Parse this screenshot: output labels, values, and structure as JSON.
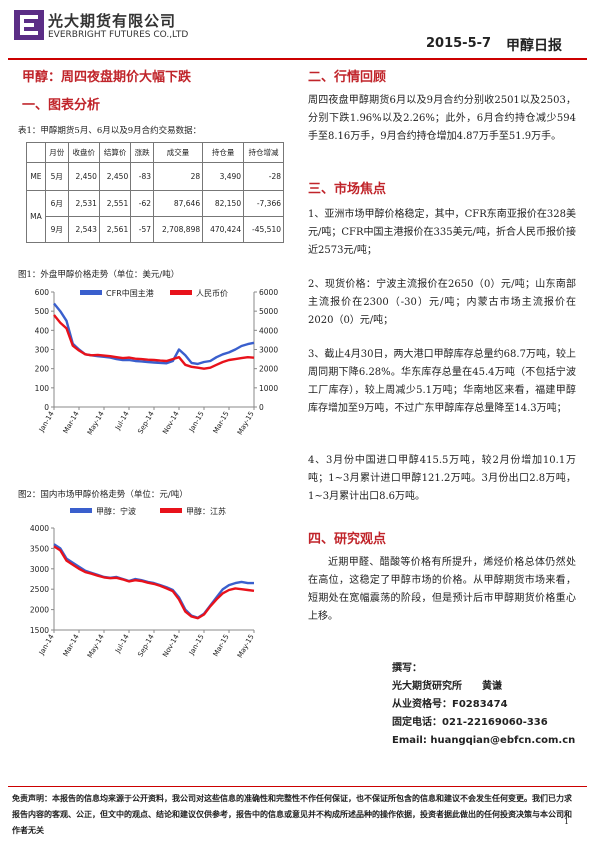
{
  "header": {
    "company_cn": "光大期货有限公司",
    "company_en": "EVERBRIGHT FUTURES CO.,LTD",
    "date": "2015-5-7",
    "report_title": "甲醇日报"
  },
  "main_title": "甲醇：周四夜盘期价大幅下跌",
  "section1_title": "一、图表分析",
  "table": {
    "caption": "表1：甲醇期货5月、6月以及9月合约交易数据：",
    "headers": [
      "",
      "月份",
      "收盘价",
      "结算价",
      "涨跌",
      "成交量",
      "持仓量",
      "持仓增减"
    ],
    "rows": [
      {
        "group": "ME",
        "month": "5月",
        "close": "2,450",
        "settle": "2,450",
        "change": "-83",
        "volume": "28",
        "oi": "3,490",
        "oi_change": "-28"
      },
      {
        "group": "MA",
        "month": "6月",
        "close": "2,531",
        "settle": "2,551",
        "change": "-62",
        "volume": "87,646",
        "oi": "82,150",
        "oi_change": "-7,366"
      },
      {
        "group": "",
        "month": "9月",
        "close": "2,543",
        "settle": "2,561",
        "change": "-57",
        "volume": "2,708,898",
        "oi": "470,424",
        "oi_change": "-45,510"
      }
    ]
  },
  "chart_data": [
    {
      "type": "line",
      "caption": "图1：外盘甲醇价格走势（单位：美元/吨）",
      "x_ticks": [
        "Jan-14",
        "Mar-14",
        "May-14",
        "Jul-14",
        "Sep-14",
        "Nov-14",
        "Jan-15",
        "Mar-15",
        "May-15"
      ],
      "y_left_ticks": [
        "0",
        "100",
        "200",
        "300",
        "400",
        "500",
        "600"
      ],
      "y_right_ticks": [
        "0",
        "1000",
        "2000",
        "3000",
        "4000",
        "5000",
        "6000"
      ],
      "ylim_left": [
        0,
        600
      ],
      "ylim_right": [
        0,
        6000
      ],
      "series": [
        {
          "name": "CFR中国主港",
          "color": "#3a5fcd",
          "axis": "left",
          "values": [
            540,
            500,
            450,
            330,
            300,
            275,
            270,
            265,
            262,
            258,
            250,
            245,
            245,
            240,
            238,
            235,
            232,
            230,
            228,
            240,
            300,
            270,
            230,
            225,
            235,
            240,
            260,
            275,
            285,
            300,
            318,
            328,
            335
          ]
        },
        {
          "name": "人民币价",
          "color": "#e8121b",
          "axis": "right",
          "values": [
            4800,
            4400,
            4100,
            3200,
            2950,
            2750,
            2700,
            2720,
            2680,
            2650,
            2600,
            2550,
            2580,
            2520,
            2500,
            2470,
            2450,
            2420,
            2400,
            2500,
            2600,
            2200,
            2100,
            2050,
            2000,
            2050,
            2200,
            2350,
            2450,
            2500,
            2550,
            2600,
            2573
          ]
        }
      ]
    },
    {
      "type": "line",
      "caption": "图2：国内市场甲醇价格走势（单位：元/吨）",
      "x_ticks": [
        "Jan-14",
        "Mar-14",
        "May-14",
        "Jul-14",
        "Sep-14",
        "Nov-14",
        "Jan-15",
        "Mar-15",
        "May-15"
      ],
      "y_ticks": [
        "1500",
        "2000",
        "2500",
        "3000",
        "3500",
        "4000"
      ],
      "ylim": [
        1500,
        4000
      ],
      "series": [
        {
          "name": "甲醇：宁波",
          "color": "#3a5fcd",
          "values": [
            3600,
            3500,
            3250,
            3150,
            3050,
            2950,
            2900,
            2850,
            2800,
            2780,
            2800,
            2750,
            2700,
            2750,
            2720,
            2680,
            2650,
            2600,
            2550,
            2480,
            2300,
            2000,
            1850,
            1800,
            1900,
            2100,
            2300,
            2500,
            2600,
            2650,
            2680,
            2650,
            2650
          ]
        },
        {
          "name": "甲醇：江苏",
          "color": "#e8121b",
          "values": [
            3550,
            3450,
            3200,
            3100,
            3000,
            2920,
            2880,
            2830,
            2790,
            2770,
            2780,
            2740,
            2690,
            2720,
            2700,
            2660,
            2630,
            2580,
            2520,
            2450,
            2250,
            1950,
            1830,
            1790,
            1880,
            2080,
            2250,
            2400,
            2480,
            2520,
            2500,
            2480,
            2460
          ]
        }
      ]
    }
  ],
  "section2_title": "二、行情回顾",
  "section2_text": "周四夜盘甲醇期货6月以及9月合约分别收2501以及2503，分别下跌1.96%以及2.26%；此外，6月合约持仓减少594手至8.16万手，9月合约持仓增加4.87万手至51.9万手。",
  "section3_title": "三、市场焦点",
  "section3_items": [
    "1、亚洲市场甲醇价格稳定，其中，CFR东南亚报价在328美元/吨；CFR中国主港报价在335美元/吨，折合人民币报价接近2573元/吨；",
    "2、现货价格：宁波主流报价在2650（0）元/吨；山东南部主流报价在2300（-30）元/吨；内蒙古市场主流报价在2020（0）元/吨；",
    "3、截止4月30日，两大港口甲醇库存总量约68.7万吨，较上周同期下降6.28%。华东库存总量在45.4万吨（不包括宁波工厂库存），较上周减少5.1万吨；华南地区来看，福建甲醇库存增加至9万吨，不过广东甲醇库存总量降至14.3万吨；",
    "4、3月份中国进口甲醇415.5万吨，较2月份增加10.1万吨；1~3月累计进口甲醇121.2万吨。3月份出口2.8万吨，1~3月累计出口8.6万吨。"
  ],
  "section4_title": "四、研究观点",
  "section4_text": "近期甲醛、醋酸等价格有所提升，烯烃价格总体仍然处在高位，这稳定了甲醇市场的价格。从甲醇期货市场来看，短期处在宽幅震荡的阶段，但是预计后市甲醇期货价格重心上移。",
  "author": {
    "label": "撰写：",
    "org_name": "光大期货研究所　　黄谦",
    "license": "从业资格号：F0283474",
    "phone": "固定电话：021-22169060-336",
    "email": "Email:  huangqian@ebfcn.com.cn"
  },
  "disclaimer": "免责声明：本报告的信息均来源于公开资料，我公司对这些信息的准确性和完整性不作任何保证，也不保证所包含的信息和建议不会发生任何变更。我们已力求报告内容的客观、公正，但文中的观点、结论和建议仅供参考，报告中的信息或意见并不构成所述品种的操作依据，投资者据此做出的任何投资决策与本公司和作者无关",
  "page_number": "1"
}
